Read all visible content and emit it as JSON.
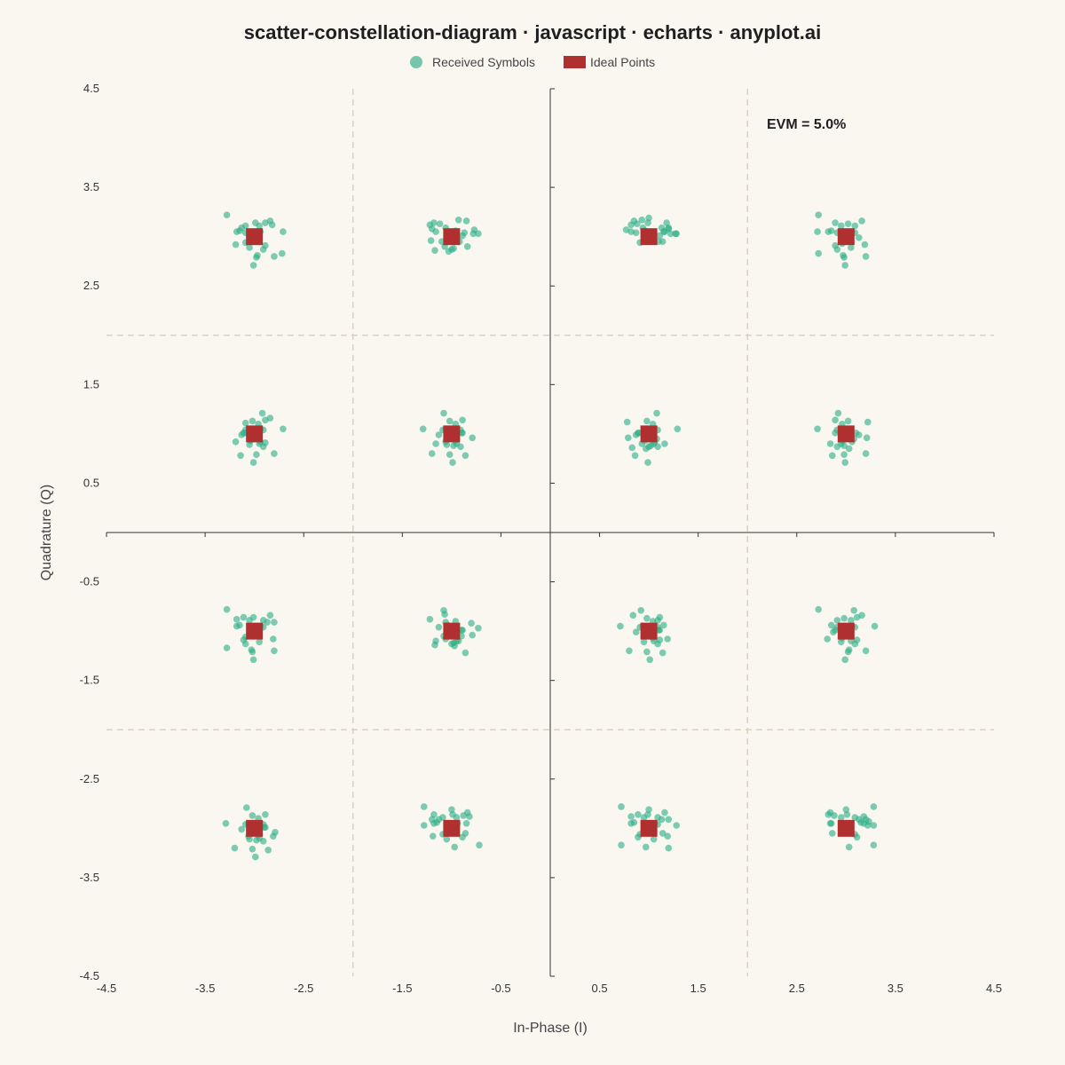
{
  "colors": {
    "background": "#FAF7F1",
    "received": "#2EAE86",
    "ideal": "#B03030",
    "axis": "#333333",
    "threshold": "#D8D2C4"
  },
  "chart_data": {
    "type": "scatter",
    "title": "scatter-constellation-diagram · javascript · echarts · anyplot.ai",
    "xlabel": "In-Phase (I)",
    "ylabel": "Quadrature (Q)",
    "xlim": [
      -4.5,
      4.5
    ],
    "ylim": [
      -4.5,
      4.5
    ],
    "ticks": [
      -4.5,
      -3.5,
      -2.5,
      -1.5,
      -0.5,
      0.5,
      1.5,
      2.5,
      3.5,
      4.5
    ],
    "tick_labels": [
      "-4.5",
      "-3.5",
      "-2.5",
      "-1.5",
      "-0.5",
      "0.5",
      "1.5",
      "2.5",
      "3.5",
      "4.5"
    ],
    "thresholds": [
      -2,
      0,
      2
    ],
    "legend": [
      "Received Symbols",
      "Ideal Points"
    ],
    "legend_position": "top-center",
    "annotation": "EVM = 5.0%",
    "grid": false,
    "ideal_points": [
      [
        -3,
        3
      ],
      [
        -1,
        3
      ],
      [
        1,
        3
      ],
      [
        3,
        3
      ],
      [
        -3,
        1
      ],
      [
        -1,
        1
      ],
      [
        1,
        1
      ],
      [
        3,
        1
      ],
      [
        -3,
        -1
      ],
      [
        -1,
        -1
      ],
      [
        1,
        -1
      ],
      [
        3,
        -1
      ],
      [
        -3,
        -3
      ],
      [
        -1,
        -3
      ],
      [
        1,
        -3
      ],
      [
        3,
        -3
      ]
    ],
    "received_offsets": [
      [
        -0.29,
        0.05
      ],
      [
        -0.15,
        0.06
      ],
      [
        0.0,
        0.19
      ],
      [
        0.11,
        0.01
      ],
      [
        0.21,
        -0.04
      ],
      [
        -0.01,
        -0.29
      ],
      [
        0.03,
        -0.19
      ],
      [
        0.28,
        0.03
      ],
      [
        -0.13,
        0.04
      ],
      [
        0.06,
        -0.08
      ],
      [
        0.09,
        -0.13
      ],
      [
        -0.05,
        0.11
      ],
      [
        0.15,
        0.05
      ],
      [
        -0.1,
        -0.05
      ],
      [
        0.04,
        0.1
      ],
      [
        -0.02,
        -0.21
      ],
      [
        -0.28,
        0.22
      ],
      [
        -0.18,
        0.14
      ],
      [
        -0.06,
        0.09
      ],
      [
        0.1,
        0.01
      ],
      [
        0.2,
        -0.2
      ],
      [
        0.28,
        -0.17
      ],
      [
        -0.12,
        0.13
      ],
      [
        0.0,
        -0.13
      ],
      [
        -0.14,
        -0.22
      ],
      [
        0.11,
        0.14
      ],
      [
        -0.03,
        0.05
      ],
      [
        0.16,
        0.05
      ],
      [
        -0.07,
        -0.1
      ],
      [
        0.05,
        -0.1
      ],
      [
        0.09,
        0.04
      ],
      [
        -0.18,
        0.05
      ],
      [
        0.23,
        0.07
      ],
      [
        -0.17,
        -0.14
      ],
      [
        -0.08,
        0.21
      ],
      [
        0.06,
        0.05
      ],
      [
        0.18,
        0.12
      ],
      [
        0.22,
        0.03
      ],
      [
        0.03,
        -0.15
      ],
      [
        -0.11,
        0.01
      ],
      [
        -0.05,
        -0.11
      ],
      [
        0.13,
        0.09
      ],
      [
        -0.15,
        0.16
      ],
      [
        0.08,
        -0.05
      ],
      [
        -0.02,
        0.13
      ],
      [
        0.19,
        -0.08
      ],
      [
        -0.09,
        -0.06
      ],
      [
        0.04,
        0.06
      ],
      [
        -0.22,
        0.12
      ],
      [
        -0.09,
        0.04
      ],
      [
        0.16,
        0.16
      ],
      [
        0.01,
        0.14
      ],
      [
        0.27,
        0.03
      ],
      [
        -0.16,
        -0.1
      ],
      [
        -0.04,
        -0.07
      ],
      [
        0.11,
        -0.09
      ],
      [
        0.2,
        0.09
      ],
      [
        -0.07,
        0.17
      ],
      [
        0.05,
        -0.03
      ],
      [
        -0.13,
        -0.01
      ],
      [
        0.09,
        0.11
      ],
      [
        0.14,
        -0.05
      ],
      [
        -0.2,
        0.08
      ],
      [
        0.02,
        -0.12
      ]
    ]
  }
}
